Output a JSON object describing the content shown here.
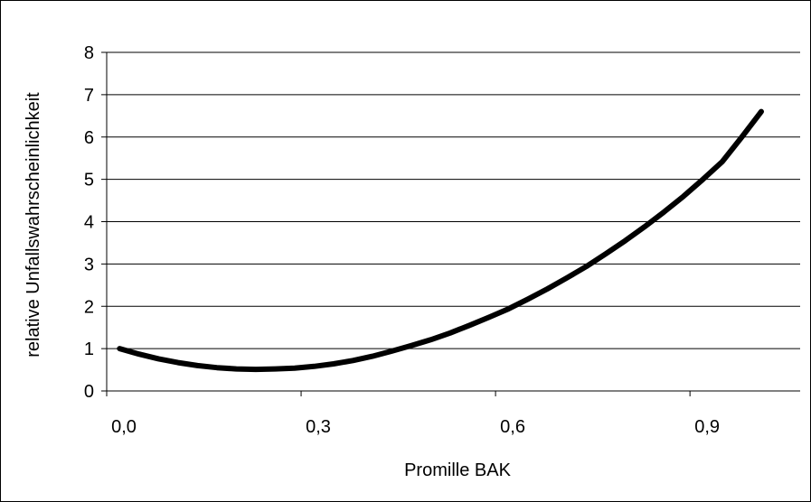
{
  "chart_data": {
    "type": "line",
    "title": "",
    "xlabel": "Promille BAK",
    "ylabel": "relative Unfallswahrscheinlichkeit",
    "xlim": [
      0.0,
      1.07
    ],
    "ylim": [
      0,
      8
    ],
    "x_ticks": [
      0.0,
      0.3,
      0.6,
      0.9
    ],
    "x_tick_labels": [
      "0,0",
      "0,3",
      "0,6",
      "0,9"
    ],
    "y_ticks": [
      0,
      1,
      2,
      3,
      4,
      5,
      6,
      7,
      8
    ],
    "y_tick_labels": [
      "0",
      "1",
      "2",
      "3",
      "4",
      "5",
      "6",
      "7",
      "8"
    ],
    "grid": "horizontal",
    "legend": "none",
    "series": [
      {
        "color": "#000000",
        "x": [
          0.02,
          0.05,
          0.08,
          0.11,
          0.14,
          0.17,
          0.2,
          0.23,
          0.26,
          0.29,
          0.32,
          0.35,
          0.38,
          0.41,
          0.44,
          0.47,
          0.5,
          0.53,
          0.56,
          0.59,
          0.62,
          0.65,
          0.68,
          0.71,
          0.74,
          0.77,
          0.8,
          0.83,
          0.86,
          0.89,
          0.92,
          0.95,
          0.98,
          1.01
        ],
        "y": [
          1.0,
          0.87,
          0.76,
          0.67,
          0.6,
          0.55,
          0.52,
          0.51,
          0.52,
          0.54,
          0.58,
          0.64,
          0.72,
          0.82,
          0.94,
          1.07,
          1.21,
          1.37,
          1.55,
          1.74,
          1.94,
          2.17,
          2.41,
          2.67,
          2.94,
          3.24,
          3.55,
          3.88,
          4.23,
          4.6,
          5.0,
          5.42,
          6.0,
          6.6
        ]
      }
    ]
  }
}
